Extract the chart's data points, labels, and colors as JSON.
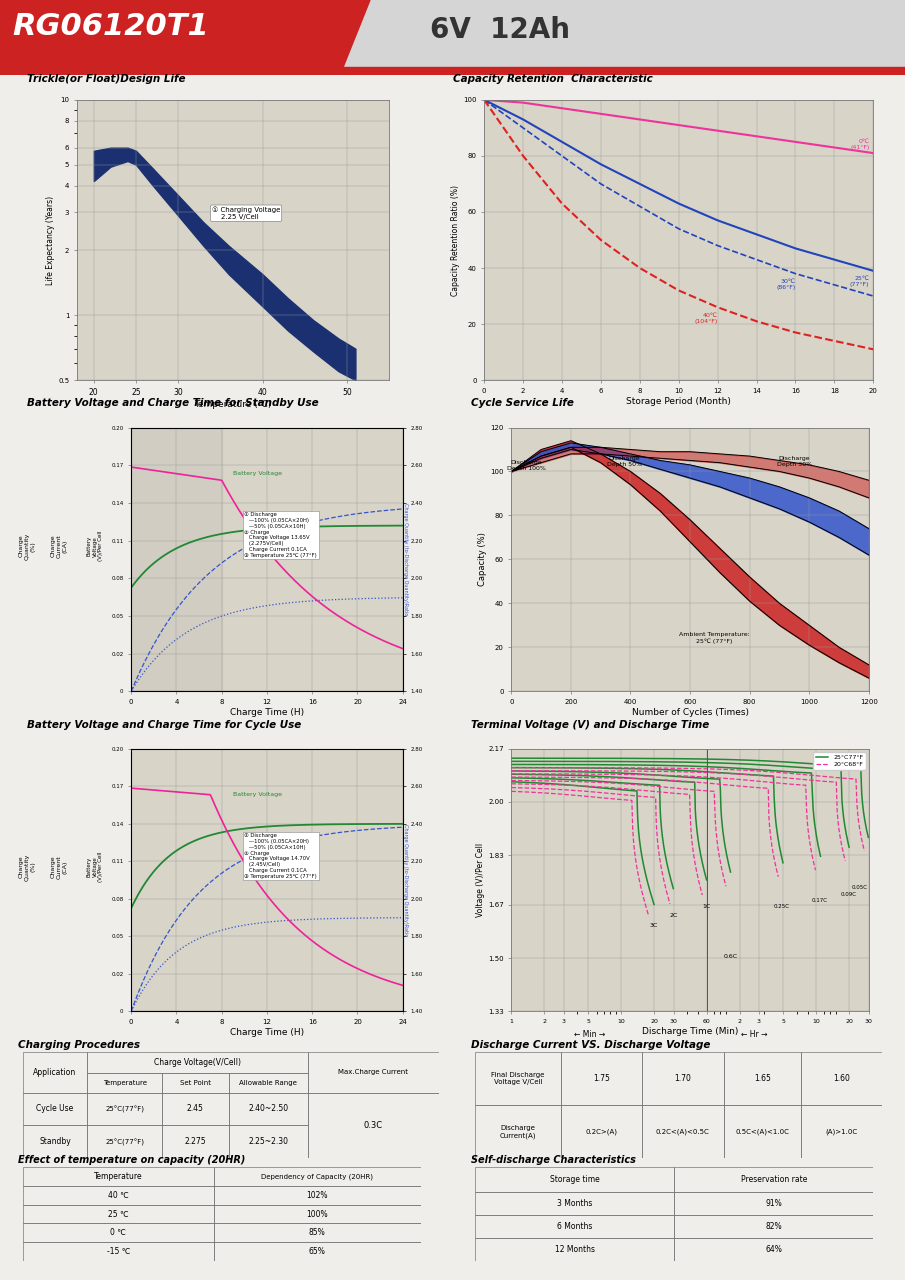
{
  "title_model": "RG06120T1",
  "title_spec": "6V  12Ah",
  "header_red": "#cc2222",
  "chart_bg": "#d8d4c8",
  "page_bg": "#f0eeea",
  "section_titles": {
    "trickle": "Trickle(or Float)Design Life",
    "capacity": "Capacity Retention  Characteristic",
    "standby_charge": "Battery Voltage and Charge Time for Standby Use",
    "cycle_life": "Cycle Service Life",
    "cycle_charge": "Battery Voltage and Charge Time for Cycle Use",
    "terminal": "Terminal Voltage (V) and Discharge Time",
    "charging_proc": "Charging Procedures",
    "discharge_vs": "Discharge Current VS. Discharge Voltage",
    "temp_effect": "Effect of temperature on capacity (20HR)",
    "self_discharge": "Self-discharge Characteristics"
  },
  "trickle_T": [
    20,
    22,
    24,
    25,
    27,
    30,
    33,
    36,
    40,
    43,
    46,
    49,
    51
  ],
  "trickle_upper": [
    5.8,
    6.0,
    6.0,
    5.8,
    4.8,
    3.6,
    2.7,
    2.1,
    1.55,
    1.2,
    0.95,
    0.78,
    0.7
  ],
  "trickle_lower": [
    4.2,
    4.9,
    5.2,
    5.0,
    4.0,
    2.9,
    2.1,
    1.55,
    1.1,
    0.85,
    0.68,
    0.55,
    0.5
  ],
  "cap_months": [
    0,
    2,
    4,
    6,
    8,
    10,
    12,
    14,
    16,
    18,
    20
  ],
  "cap_0C": [
    100,
    99,
    97,
    95,
    93,
    91,
    89,
    87,
    85,
    83,
    81
  ],
  "cap_25C": [
    100,
    93,
    85,
    77,
    70,
    63,
    57,
    52,
    47,
    43,
    39
  ],
  "cap_30C": [
    100,
    90,
    80,
    70,
    62,
    54,
    48,
    43,
    38,
    34,
    30
  ],
  "cap_40C": [
    100,
    80,
    63,
    50,
    40,
    32,
    26,
    21,
    17,
    14,
    11
  ],
  "bv_ticks": [
    1.4,
    1.6,
    1.8,
    2.0,
    2.2,
    2.4,
    2.6,
    2.8
  ],
  "cycle_100_upper": [
    100,
    110,
    114,
    108,
    100,
    90,
    78,
    65,
    52,
    40,
    30,
    20,
    12
  ],
  "cycle_100_lower": [
    100,
    107,
    111,
    104,
    94,
    82,
    68,
    54,
    41,
    30,
    21,
    13,
    6
  ],
  "cycle_50_upper": [
    100,
    109,
    113,
    111,
    108,
    105,
    103,
    100,
    97,
    93,
    88,
    82,
    74
  ],
  "cycle_50_lower": [
    100,
    106,
    110,
    108,
    105,
    101,
    97,
    93,
    88,
    83,
    77,
    70,
    62
  ],
  "cycle_30_upper": [
    100,
    107,
    111,
    111,
    110,
    109,
    109,
    108,
    107,
    105,
    103,
    100,
    96
  ],
  "cycle_30_lower": [
    100,
    104,
    108,
    108,
    107,
    106,
    105,
    104,
    102,
    100,
    97,
    93,
    88
  ]
}
